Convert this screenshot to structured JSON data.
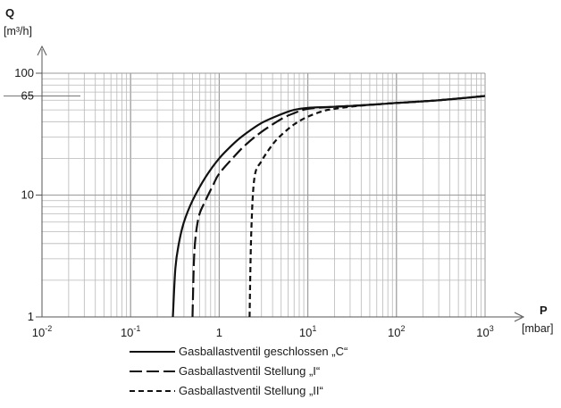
{
  "chart_data": {
    "type": "line",
    "x_axis": {
      "name": "P",
      "unit": "[mbar]",
      "scale": "log",
      "range": [
        0.01,
        1000
      ],
      "tick_values": [
        0.01,
        0.1,
        1,
        10,
        100,
        1000
      ],
      "tick_labels": [
        {
          "base": "10",
          "exp": "-2"
        },
        {
          "base": "10",
          "exp": "-1"
        },
        {
          "base": "1",
          "exp": ""
        },
        {
          "base": "10",
          "exp": "1"
        },
        {
          "base": "10",
          "exp": "2"
        },
        {
          "base": "10",
          "exp": "3"
        }
      ]
    },
    "y_axis": {
      "name": "Q",
      "unit": "[m³/h]",
      "scale": "log",
      "range": [
        1,
        100
      ],
      "tick_values": [
        1,
        10,
        65,
        100
      ],
      "tick_labels": [
        "1",
        "10",
        "65",
        "100"
      ]
    },
    "grid": true,
    "legend_position": "bottom",
    "series": [
      {
        "name": "Gasballastventil geschlossen „C“",
        "dash": "solid",
        "x": [
          0.3,
          0.32,
          0.35,
          0.4,
          0.5,
          0.7,
          1,
          1.5,
          2,
          3,
          5,
          7,
          10,
          20,
          50,
          100,
          300,
          1000
        ],
        "y": [
          1,
          2.5,
          4,
          6,
          9,
          14,
          20,
          27,
          32,
          39,
          46,
          50,
          52,
          53,
          55,
          57,
          60,
          65
        ]
      },
      {
        "name": "Gasballastventil Stellung „I“",
        "dash": "long-dash",
        "x": [
          0.5,
          0.52,
          0.55,
          0.6,
          0.7,
          0.85,
          1,
          1.5,
          2,
          3,
          5,
          7,
          10,
          20,
          50,
          100,
          300,
          1000
        ],
        "y": [
          1,
          3,
          5,
          7,
          9,
          12,
          15,
          21,
          26,
          33,
          42,
          47,
          51,
          53,
          55,
          57,
          60,
          65
        ]
      },
      {
        "name": "Gasballastventil Stellung „II“",
        "dash": "short-dash",
        "x": [
          2.2,
          2.3,
          2.5,
          3,
          4,
          5,
          7,
          10,
          15,
          20,
          30,
          50,
          100,
          300,
          1000
        ],
        "y": [
          1,
          5,
          14,
          19,
          26,
          31,
          38,
          44,
          49,
          51,
          53,
          55,
          57,
          60,
          65
        ]
      }
    ]
  }
}
